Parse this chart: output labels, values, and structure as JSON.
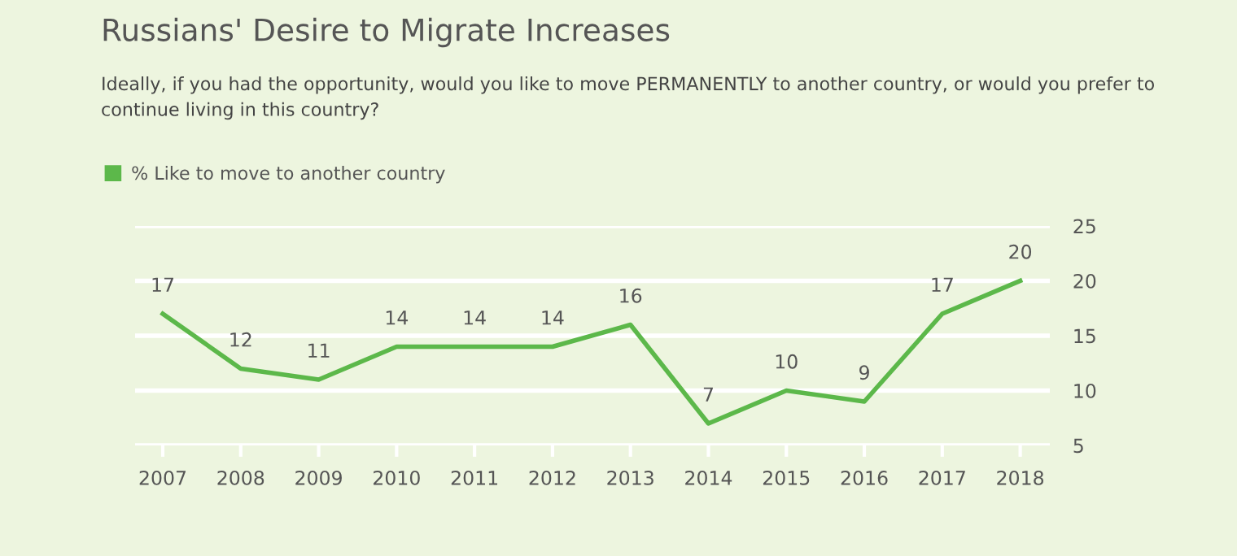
{
  "chart_data": {
    "type": "line",
    "title": "Russians' Desire to Migrate Increases",
    "subtitle": "Ideally, if you had the opportunity, would you like to move PERMANENTLY to another country, or would you prefer to continue living in this country?",
    "categories": [
      "2007",
      "2008",
      "2009",
      "2010",
      "2011",
      "2012",
      "2013",
      "2014",
      "2015",
      "2016",
      "2017",
      "2018"
    ],
    "series": [
      {
        "name": "% Like to move to another country",
        "color": "#5cb84a",
        "values": [
          17,
          12,
          11,
          14,
          14,
          14,
          16,
          7,
          10,
          9,
          17,
          20
        ]
      }
    ],
    "ylim": [
      5,
      25
    ],
    "yticks": [
      5,
      10,
      15,
      20,
      25
    ],
    "grid": "y",
    "legend": "top left",
    "data_labels": true,
    "marker": "none",
    "line_style": "solid"
  }
}
